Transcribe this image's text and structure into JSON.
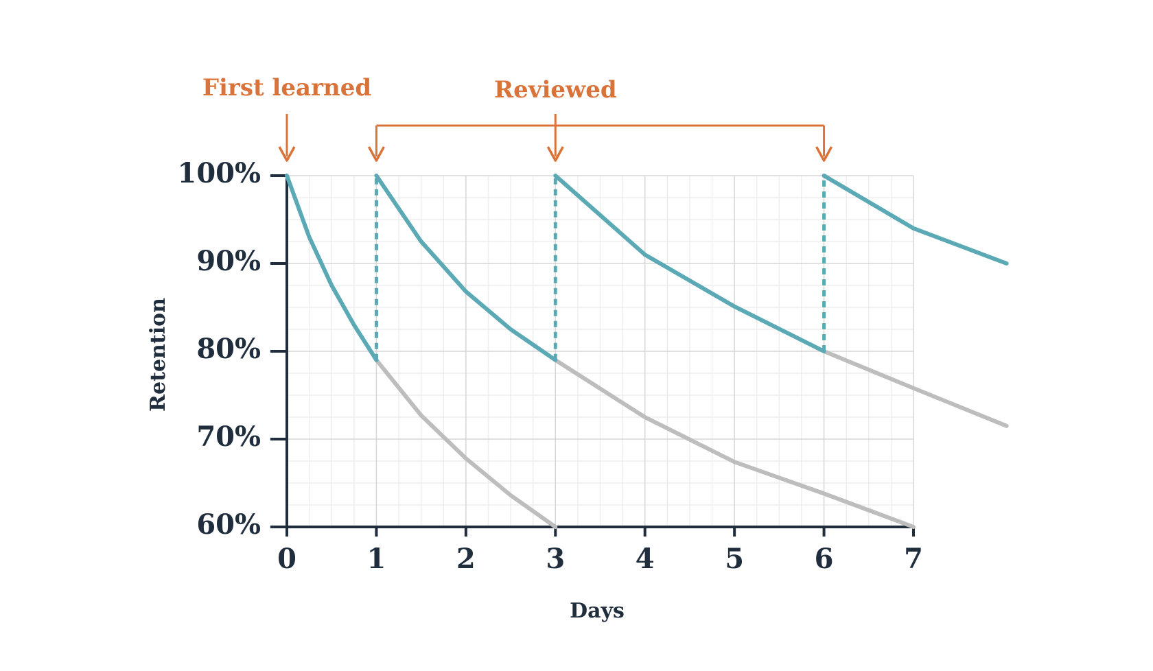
{
  "chart_data": {
    "type": "line",
    "x_label": "Days",
    "y_label": "Retention",
    "xlim": [
      0,
      7
    ],
    "xticks": [
      0,
      1,
      2,
      3,
      4,
      5,
      6,
      7
    ],
    "ylim": [
      60,
      100
    ],
    "yticks": [
      {
        "value": 60,
        "label": "60%"
      },
      {
        "value": 70,
        "label": "70%"
      },
      {
        "value": 80,
        "label": "80%"
      },
      {
        "value": 90,
        "label": "90%"
      },
      {
        "value": 100,
        "label": "100%"
      }
    ],
    "grid": true,
    "minor_grid_divisions": 4,
    "annotation_color": "#d9733a",
    "annotations": [
      {
        "text": "First learned",
        "x": [
          0
        ]
      },
      {
        "text": "Reviewed",
        "x": [
          1,
          3,
          6
        ]
      }
    ],
    "series": [
      {
        "color": "#bdbdbd",
        "x": [
          1,
          1.5,
          2,
          2.5,
          3
        ],
        "values": [
          79,
          72.7,
          67.8,
          63.6,
          60
        ]
      },
      {
        "color": "#bdbdbd",
        "x": [
          3,
          4,
          5,
          6,
          7
        ],
        "values": [
          79,
          72.5,
          67.4,
          63.8,
          60
        ]
      },
      {
        "color": "#bdbdbd",
        "x": [
          6,
          7,
          8.04
        ],
        "values": [
          80,
          75.8,
          71.5
        ]
      },
      {
        "color": "#5aa9b5",
        "dashed": true,
        "x": [
          1,
          1
        ],
        "values": [
          79,
          100
        ]
      },
      {
        "color": "#5aa9b5",
        "dashed": true,
        "x": [
          3,
          3
        ],
        "values": [
          79,
          100
        ]
      },
      {
        "color": "#5aa9b5",
        "dashed": true,
        "x": [
          6,
          6
        ],
        "values": [
          80,
          100
        ]
      },
      {
        "color": "#5aa9b5",
        "x": [
          0,
          0.25,
          0.5,
          0.75,
          1
        ],
        "values": [
          100,
          93,
          87.5,
          83,
          79
        ]
      },
      {
        "color": "#5aa9b5",
        "x": [
          1,
          1.5,
          2,
          2.5,
          3
        ],
        "values": [
          100,
          92.5,
          86.8,
          82.5,
          79
        ]
      },
      {
        "color": "#5aa9b5",
        "x": [
          3,
          4,
          5,
          6
        ],
        "values": [
          100,
          91,
          85.1,
          80
        ]
      },
      {
        "color": "#5aa9b5",
        "x": [
          6,
          7,
          8.04
        ],
        "values": [
          100,
          94,
          90
        ]
      }
    ]
  }
}
